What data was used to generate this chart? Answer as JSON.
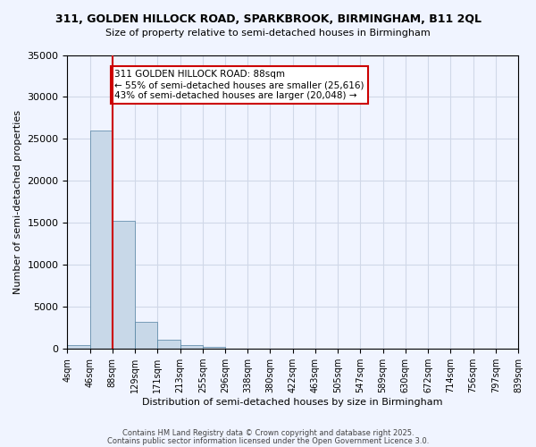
{
  "title": "311, GOLDEN HILLOCK ROAD, SPARKBROOK, BIRMINGHAM, B11 2QL",
  "subtitle": "Size of property relative to semi-detached houses in Birmingham",
  "xlabel": "Distribution of semi-detached houses by size in Birmingham",
  "ylabel": "Number of semi-detached properties",
  "property_label": "311 GOLDEN HILLOCK ROAD: 88sqm",
  "pct_smaller": 55,
  "count_smaller": 25616,
  "pct_larger": 43,
  "count_larger": 20048,
  "bar_color": "#c8d8e8",
  "bar_edge_color": "#5080a0",
  "red_line_color": "#cc0000",
  "annotation_box_color": "#cc0000",
  "grid_color": "#d0d8e8",
  "background_color": "#f0f4ff",
  "bin_labels": [
    "4sqm",
    "46sqm",
    "88sqm",
    "129sqm",
    "171sqm",
    "213sqm",
    "255sqm",
    "296sqm",
    "338sqm",
    "380sqm",
    "422sqm",
    "463sqm",
    "505sqm",
    "547sqm",
    "589sqm",
    "630sqm",
    "672sqm",
    "714sqm",
    "756sqm",
    "797sqm",
    "839sqm"
  ],
  "counts": [
    400,
    26000,
    15200,
    3200,
    1100,
    450,
    200,
    0,
    0,
    0,
    0,
    0,
    0,
    0,
    0,
    0,
    0,
    0,
    0,
    0
  ],
  "ylim": [
    0,
    35000
  ],
  "yticks": [
    0,
    5000,
    10000,
    15000,
    20000,
    25000,
    30000,
    35000
  ],
  "footer1": "Contains HM Land Registry data © Crown copyright and database right 2025.",
  "footer2": "Contains public sector information licensed under the Open Government Licence 3.0."
}
